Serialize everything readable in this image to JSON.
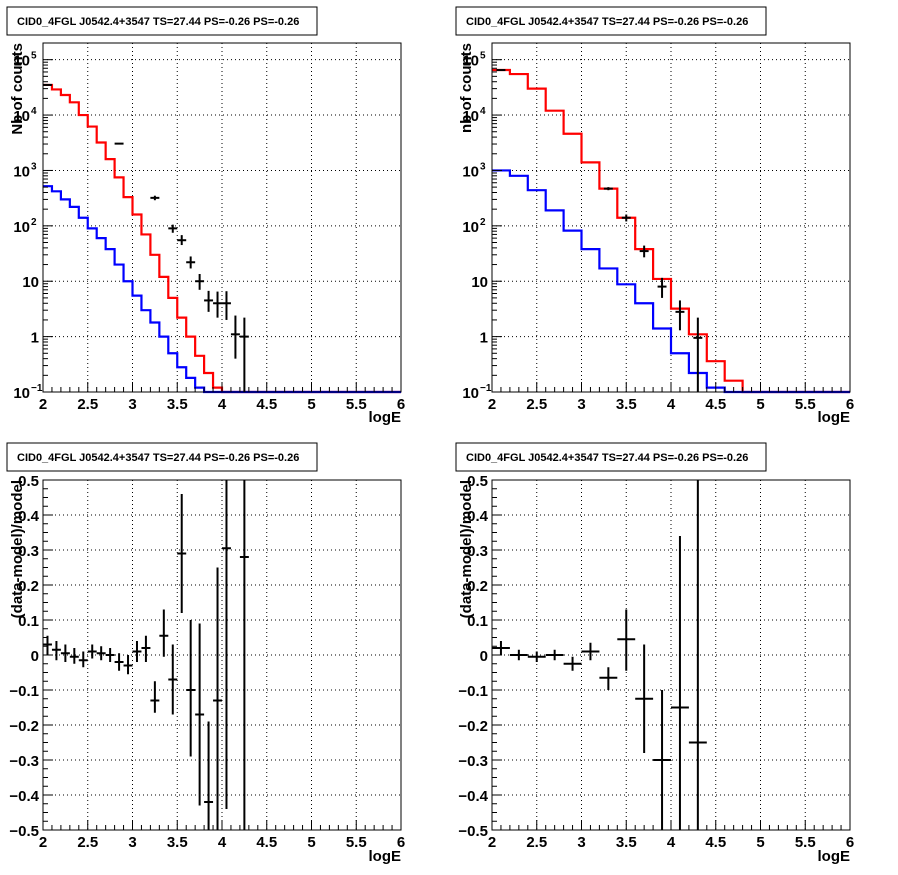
{
  "chart_data": [
    {
      "id": "p1",
      "type": "line",
      "title": "CID0_4FGL J0542.4+3547 TS=27.44 PS=-0.26 PS=-0.26",
      "xlabel": "logE",
      "ylabel": "Nb of counts",
      "xlim": [
        2,
        6
      ],
      "ylim": [
        0.1,
        200000
      ],
      "yscale": "log",
      "grid": true,
      "xticks": [
        "2",
        "2.5",
        "3",
        "3.5",
        "4",
        "4.5",
        "5",
        "5.5",
        "6"
      ],
      "yticks": [
        {
          "v": 0.1,
          "label": "10",
          "exp": "−1"
        },
        {
          "v": 1,
          "label": "1"
        },
        {
          "v": 10,
          "label": "10"
        },
        {
          "v": 100,
          "label": "10",
          "exp": "2"
        },
        {
          "v": 1000,
          "label": "10",
          "exp": "3"
        },
        {
          "v": 10000,
          "label": "10",
          "exp": "4"
        },
        {
          "v": 100000,
          "label": "10",
          "exp": "5"
        }
      ],
      "bin_edges": [
        2.0,
        2.1,
        2.2,
        2.3,
        2.4,
        2.5,
        2.6,
        2.7,
        2.8,
        2.9,
        3.0,
        3.1,
        3.2,
        3.3,
        3.4,
        3.5,
        3.6,
        3.7,
        3.8,
        3.9,
        4.0,
        4.1,
        4.2,
        4.3,
        4.4,
        4.5,
        4.6,
        4.7,
        4.8,
        4.9,
        5.0,
        5.1,
        5.2,
        5.3,
        5.4,
        5.5,
        5.6,
        5.7,
        5.8,
        5.9,
        6.0
      ],
      "series": [
        {
          "color": "#ff0000",
          "values": [
            35000,
            29000,
            23000,
            17000,
            10000,
            6200,
            3200,
            1600,
            750,
            330,
            160,
            70,
            30,
            12,
            5,
            2.2,
            1,
            0.45,
            0.22,
            0.12,
            0.1,
            0.1,
            0.1,
            0.1,
            0.1,
            0.1,
            0.1,
            0.1,
            0.1,
            0.1,
            0.1,
            0.1,
            0.1,
            0.1,
            0.1,
            0.1,
            0.1,
            0.1,
            0.1,
            0.1
          ]
        },
        {
          "color": "#0000ff",
          "values": [
            520,
            420,
            300,
            220,
            140,
            90,
            60,
            38,
            20,
            10,
            5.5,
            3,
            1.8,
            1,
            0.5,
            0.28,
            0.18,
            0.12,
            0.1,
            0.1,
            0.1,
            0.1,
            0.1,
            0.1,
            0.1,
            0.1,
            0.1,
            0.1,
            0.1,
            0.1,
            0.1,
            0.1,
            0.1,
            0.1,
            0.1,
            0.1,
            0.1,
            0.1,
            0.1,
            0.1
          ]
        }
      ],
      "points": [
        {
          "x": 2.05,
          "y": 35000,
          "ylo": 35000,
          "yhi": 35000
        },
        {
          "x": 2.85,
          "y": 3050,
          "ylo": 3050,
          "yhi": 3050
        },
        {
          "x": 3.25,
          "y": 320,
          "ylo": 290,
          "yhi": 350
        },
        {
          "x": 3.45,
          "y": 90,
          "ylo": 75,
          "yhi": 105
        },
        {
          "x": 3.55,
          "y": 55,
          "ylo": 45,
          "yhi": 68
        },
        {
          "x": 3.65,
          "y": 22,
          "ylo": 17,
          "yhi": 28
        },
        {
          "x": 3.75,
          "y": 10,
          "ylo": 7,
          "yhi": 13.5
        },
        {
          "x": 3.85,
          "y": 4.5,
          "ylo": 2.8,
          "yhi": 6.7
        },
        {
          "x": 3.95,
          "y": 4,
          "ylo": 2.2,
          "yhi": 6.5
        },
        {
          "x": 4.05,
          "y": 4,
          "ylo": 2.0,
          "yhi": 6.6
        },
        {
          "x": 4.15,
          "y": 1.1,
          "ylo": 0.4,
          "yhi": 2.4
        },
        {
          "x": 4.25,
          "y": 1,
          "ylo": 0.1,
          "yhi": 2.2
        }
      ]
    },
    {
      "id": "p2",
      "type": "line",
      "title": "CID0_4FGL J0542.4+3547 TS=27.44 PS=-0.26 PS=-0.26",
      "xlabel": "logE",
      "ylabel": "nb of counts",
      "xlim": [
        2,
        6
      ],
      "ylim": [
        0.1,
        200000
      ],
      "yscale": "log",
      "grid": true,
      "xticks": [
        "2",
        "2.5",
        "3",
        "3.5",
        "4",
        "4.5",
        "5",
        "5.5",
        "6"
      ],
      "yticks": [
        {
          "v": 0.1,
          "label": "10",
          "exp": "−1"
        },
        {
          "v": 1,
          "label": "1"
        },
        {
          "v": 10,
          "label": "10"
        },
        {
          "v": 100,
          "label": "10",
          "exp": "2"
        },
        {
          "v": 1000,
          "label": "10",
          "exp": "3"
        },
        {
          "v": 10000,
          "label": "10",
          "exp": "4"
        },
        {
          "v": 100000,
          "label": "10",
          "exp": "5"
        }
      ],
      "bin_edges": [
        2.0,
        2.2,
        2.4,
        2.6,
        2.8,
        3.0,
        3.2,
        3.4,
        3.6,
        3.8,
        4.0,
        4.2,
        4.4,
        4.6,
        4.8,
        5.0,
        5.2,
        5.4,
        5.6,
        5.8,
        6.0
      ],
      "series": [
        {
          "color": "#ff0000",
          "values": [
            65000,
            55000,
            30000,
            12000,
            4600,
            1400,
            470,
            140,
            38,
            11,
            3.2,
            1.1,
            0.36,
            0.16,
            0.1,
            0.1,
            0.1,
            0.1,
            0.1,
            0.1
          ]
        },
        {
          "color": "#0000ff",
          "values": [
            1000,
            800,
            440,
            190,
            82,
            38,
            17,
            8.8,
            4,
            1.4,
            0.5,
            0.22,
            0.12,
            0.1,
            0.1,
            0.1,
            0.1,
            0.1,
            0.1,
            0.1
          ]
        }
      ],
      "points": [
        {
          "x": 2.1,
          "y": 65000,
          "ylo": 65000,
          "yhi": 65000
        },
        {
          "x": 3.3,
          "y": 470,
          "ylo": 440,
          "yhi": 500
        },
        {
          "x": 3.5,
          "y": 140,
          "ylo": 120,
          "yhi": 160
        },
        {
          "x": 3.7,
          "y": 35,
          "ylo": 27,
          "yhi": 44
        },
        {
          "x": 3.9,
          "y": 8,
          "ylo": 5,
          "yhi": 11.5
        },
        {
          "x": 4.1,
          "y": 2.8,
          "ylo": 1.3,
          "yhi": 4.5
        },
        {
          "x": 4.3,
          "y": 0.95,
          "ylo": 0.1,
          "yhi": 2.2
        }
      ]
    },
    {
      "id": "p3",
      "type": "scatter",
      "title": "CID0_4FGL J0542.4+3547 TS=27.44 PS=-0.26 PS=-0.26",
      "xlabel": "logE",
      "ylabel": "(data-model)/model",
      "xlim": [
        2,
        6
      ],
      "ylim": [
        -0.5,
        0.5
      ],
      "yscale": "linear",
      "grid": true,
      "xticks": [
        "2",
        "2.5",
        "3",
        "3.5",
        "4",
        "4.5",
        "5",
        "5.5",
        "6"
      ],
      "yticks": [
        {
          "v": -0.5,
          "label": "−0.5"
        },
        {
          "v": -0.4,
          "label": "−0.4"
        },
        {
          "v": -0.3,
          "label": "−0.3"
        },
        {
          "v": -0.2,
          "label": "−0.2"
        },
        {
          "v": -0.1,
          "label": "−0.1"
        },
        {
          "v": 0,
          "label": "0"
        },
        {
          "v": 0.1,
          "label": "0.1"
        },
        {
          "v": 0.2,
          "label": "0.2"
        },
        {
          "v": 0.3,
          "label": "0.3"
        },
        {
          "v": 0.4,
          "label": "0.4"
        },
        {
          "v": 0.5,
          "label": "0.5"
        }
      ],
      "xhalf": 0.05,
      "points": [
        {
          "x": 2.05,
          "y": 0.03,
          "ylo": 0.0,
          "yhi": 0.055
        },
        {
          "x": 2.15,
          "y": 0.015,
          "ylo": -0.015,
          "yhi": 0.04
        },
        {
          "x": 2.25,
          "y": 0.005,
          "ylo": -0.02,
          "yhi": 0.03
        },
        {
          "x": 2.35,
          "y": -0.005,
          "ylo": -0.025,
          "yhi": 0.02
        },
        {
          "x": 2.45,
          "y": -0.015,
          "ylo": -0.035,
          "yhi": 0.01
        },
        {
          "x": 2.55,
          "y": 0.01,
          "ylo": -0.01,
          "yhi": 0.03
        },
        {
          "x": 2.65,
          "y": 0.005,
          "ylo": -0.015,
          "yhi": 0.025
        },
        {
          "x": 2.75,
          "y": 0.0,
          "ylo": -0.02,
          "yhi": 0.02
        },
        {
          "x": 2.85,
          "y": -0.02,
          "ylo": -0.045,
          "yhi": 0.005
        },
        {
          "x": 2.95,
          "y": -0.03,
          "ylo": -0.055,
          "yhi": 0.0
        },
        {
          "x": 3.05,
          "y": 0.01,
          "ylo": -0.02,
          "yhi": 0.04
        },
        {
          "x": 3.15,
          "y": 0.02,
          "ylo": -0.02,
          "yhi": 0.055
        },
        {
          "x": 3.25,
          "y": -0.13,
          "ylo": -0.165,
          "yhi": -0.075
        },
        {
          "x": 3.35,
          "y": 0.055,
          "ylo": -0.005,
          "yhi": 0.13
        },
        {
          "x": 3.45,
          "y": -0.07,
          "ylo": -0.17,
          "yhi": 0.03
        },
        {
          "x": 3.55,
          "y": 0.29,
          "ylo": 0.12,
          "yhi": 0.46
        },
        {
          "x": 3.65,
          "y": -0.1,
          "ylo": -0.29,
          "yhi": 0.1
        },
        {
          "x": 3.75,
          "y": -0.17,
          "ylo": -0.43,
          "yhi": 0.09
        },
        {
          "x": 3.85,
          "y": -0.42,
          "ylo": -0.5,
          "yhi": -0.19
        },
        {
          "x": 3.95,
          "y": -0.13,
          "ylo": -0.5,
          "yhi": 0.25
        },
        {
          "x": 4.05,
          "y": 0.305,
          "ylo": -0.44,
          "yhi": 0.5
        },
        {
          "x": 4.25,
          "y": 0.28,
          "ylo": -0.5,
          "yhi": 0.5
        }
      ]
    },
    {
      "id": "p4",
      "type": "scatter",
      "title": "CID0_4FGL J0542.4+3547 TS=27.44 PS=-0.26 PS=-0.26",
      "xlabel": "logE",
      "ylabel": "(data-model)/model",
      "xlim": [
        2,
        6
      ],
      "ylim": [
        -0.5,
        0.5
      ],
      "yscale": "linear",
      "grid": true,
      "xticks": [
        "2",
        "2.5",
        "3",
        "3.5",
        "4",
        "4.5",
        "5",
        "5.5",
        "6"
      ],
      "yticks": [
        {
          "v": -0.5,
          "label": "−0.5"
        },
        {
          "v": -0.4,
          "label": "−0.4"
        },
        {
          "v": -0.3,
          "label": "−0.3"
        },
        {
          "v": -0.2,
          "label": "−0.2"
        },
        {
          "v": -0.1,
          "label": "−0.1"
        },
        {
          "v": 0,
          "label": "0"
        },
        {
          "v": 0.1,
          "label": "0.1"
        },
        {
          "v": 0.2,
          "label": "0.2"
        },
        {
          "v": 0.3,
          "label": "0.3"
        },
        {
          "v": 0.4,
          "label": "0.4"
        },
        {
          "v": 0.5,
          "label": "0.5"
        }
      ],
      "xhalf": 0.1,
      "points": [
        {
          "x": 2.1,
          "y": 0.02,
          "ylo": 0.0,
          "yhi": 0.04
        },
        {
          "x": 2.3,
          "y": 0.0,
          "ylo": -0.015,
          "yhi": 0.015
        },
        {
          "x": 2.5,
          "y": -0.005,
          "ylo": -0.02,
          "yhi": 0.01
        },
        {
          "x": 2.7,
          "y": 0.0,
          "ylo": -0.015,
          "yhi": 0.015
        },
        {
          "x": 2.9,
          "y": -0.025,
          "ylo": -0.045,
          "yhi": -0.005
        },
        {
          "x": 3.1,
          "y": 0.01,
          "ylo": -0.015,
          "yhi": 0.035
        },
        {
          "x": 3.3,
          "y": -0.065,
          "ylo": -0.1,
          "yhi": -0.035
        },
        {
          "x": 3.5,
          "y": 0.045,
          "ylo": -0.045,
          "yhi": 0.13
        },
        {
          "x": 3.7,
          "y": -0.125,
          "ylo": -0.28,
          "yhi": 0.03
        },
        {
          "x": 3.9,
          "y": -0.3,
          "ylo": -0.5,
          "yhi": -0.1
        },
        {
          "x": 4.1,
          "y": -0.15,
          "ylo": -0.5,
          "yhi": 0.34
        },
        {
          "x": 4.3,
          "y": -0.25,
          "ylo": -0.5,
          "yhi": 0.5
        }
      ]
    }
  ]
}
